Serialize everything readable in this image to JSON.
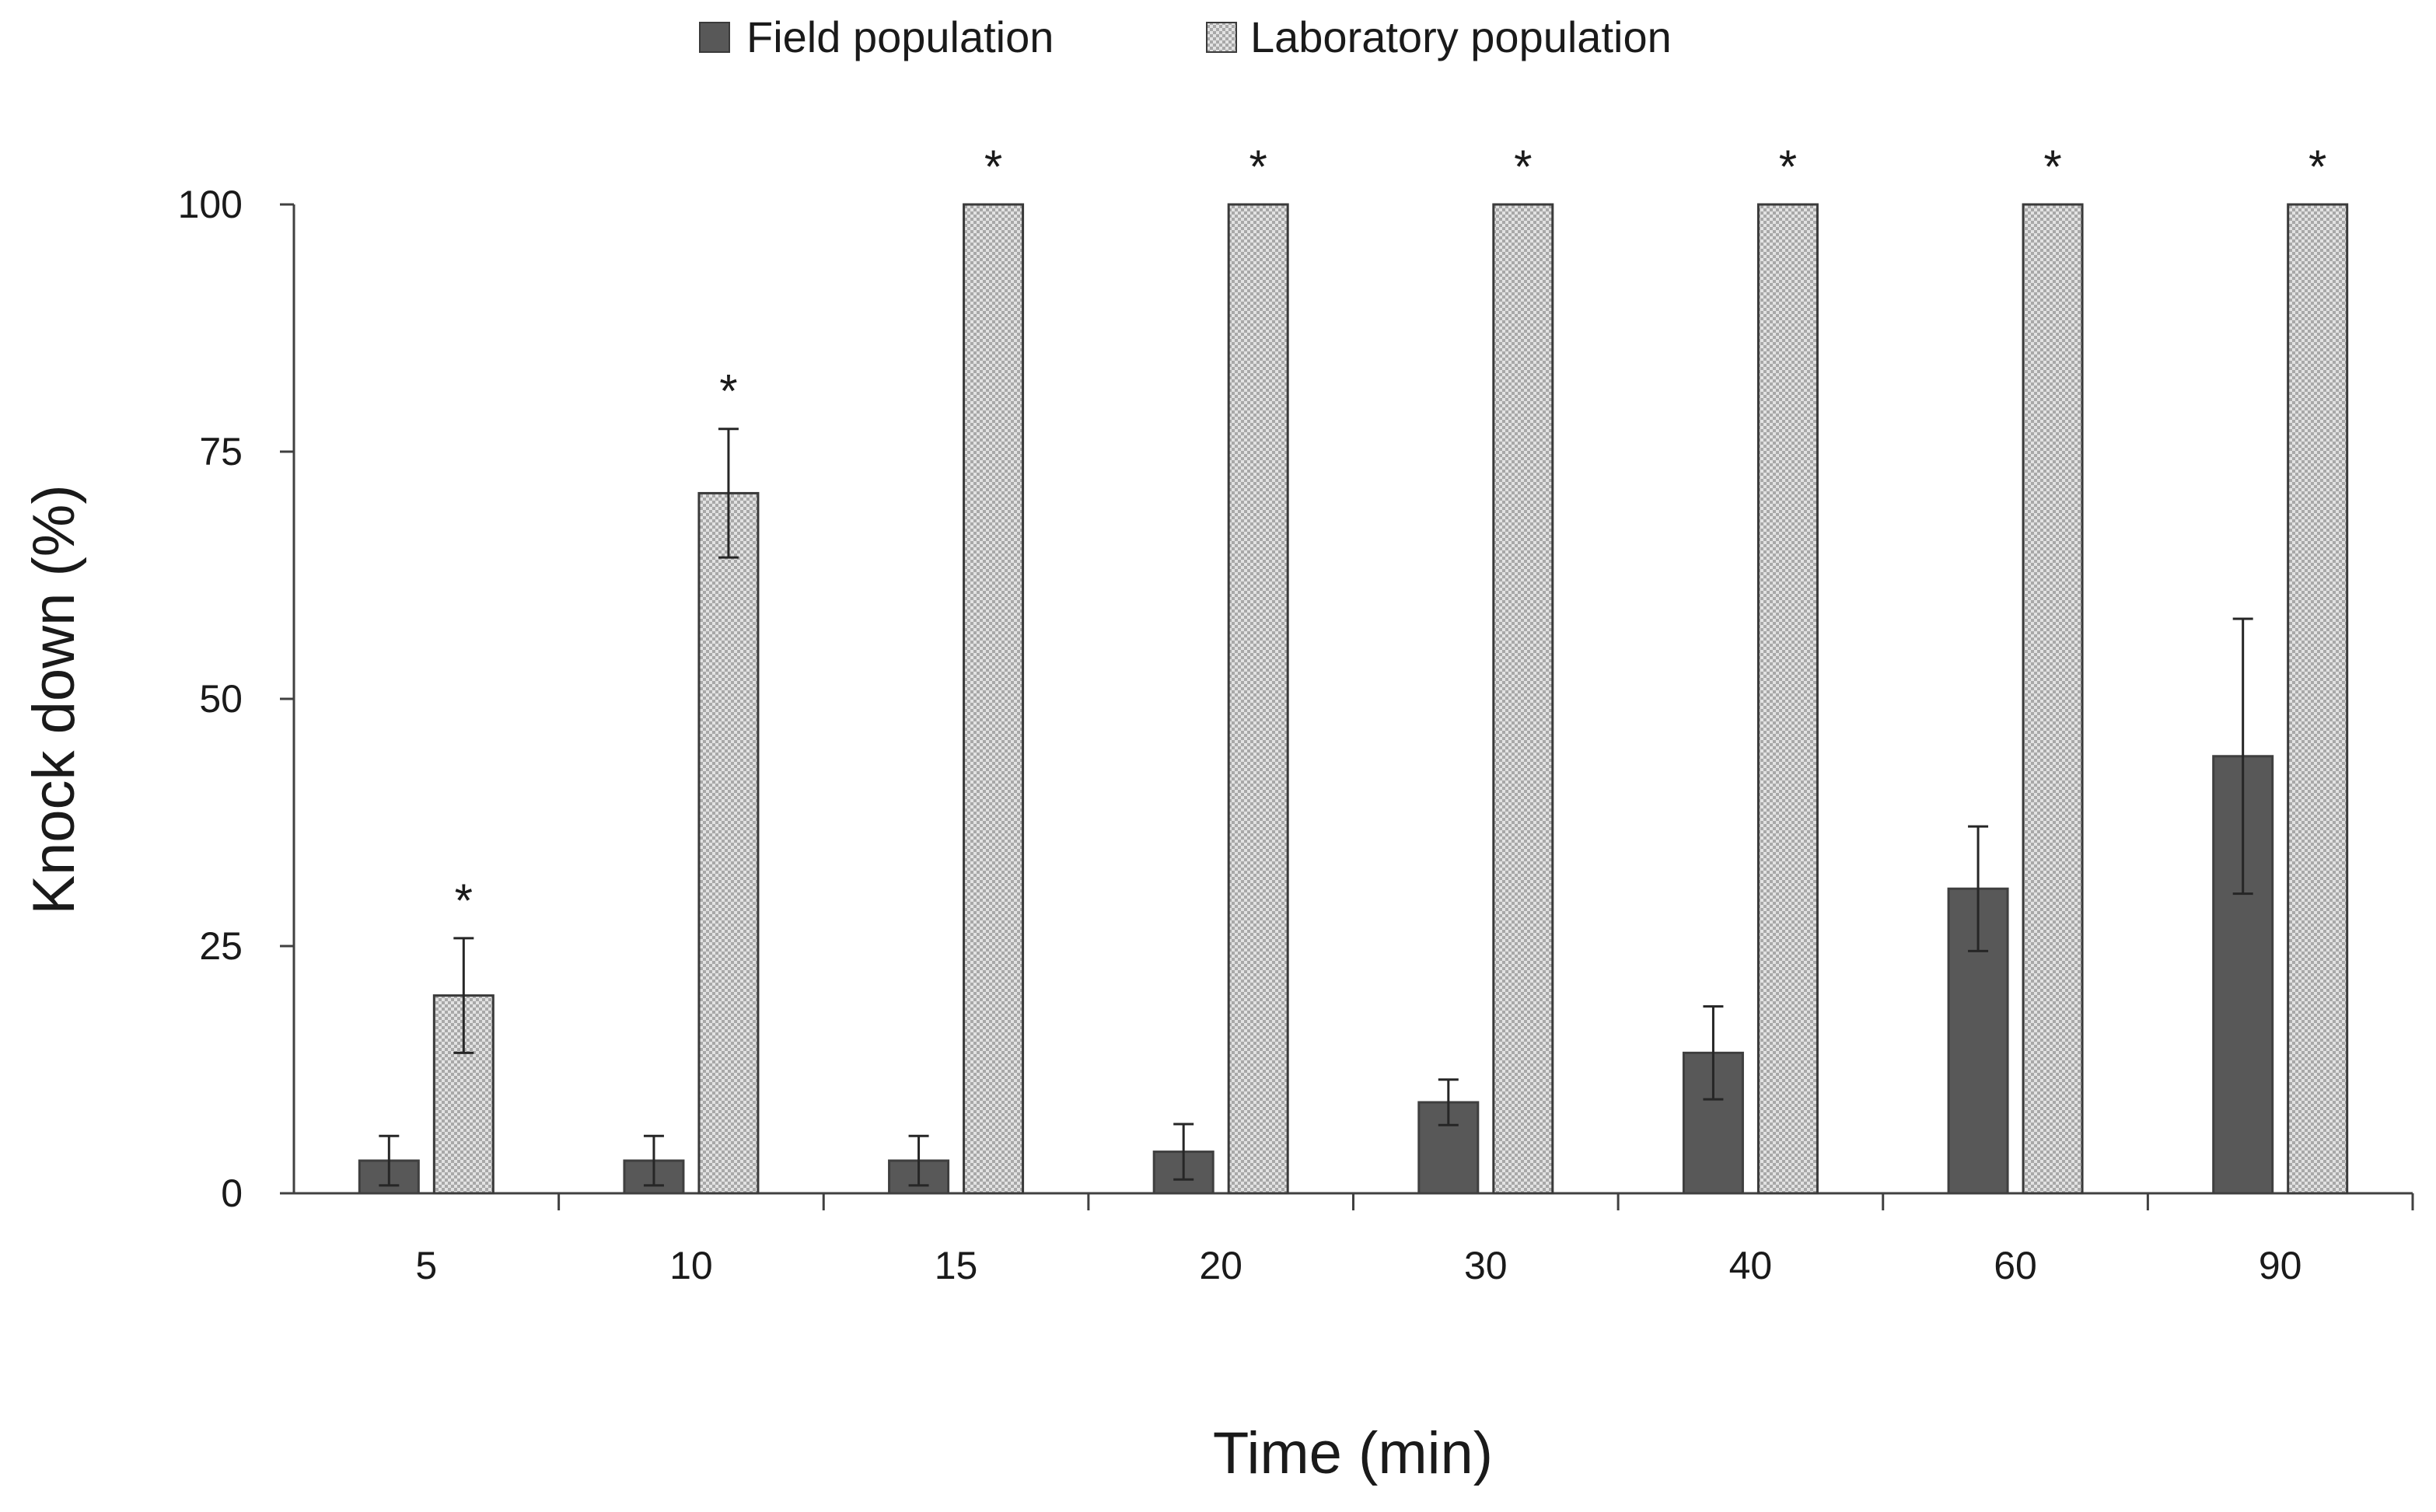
{
  "chart_data": {
    "type": "bar",
    "title": "",
    "xlabel": "Time (min)",
    "ylabel": "Knock down (%)",
    "ylim": [
      0,
      100
    ],
    "yticks": [
      0,
      25,
      50,
      75,
      100
    ],
    "legend_position": "top-center",
    "categories": [
      "5",
      "10",
      "15",
      "20",
      "30",
      "40",
      "60",
      "90"
    ],
    "series": [
      {
        "name": "Field population",
        "color": "#585858",
        "pattern": "solid",
        "values": [
          3.3,
          3.3,
          3.3,
          4.2,
          9.2,
          14.2,
          30.8,
          44.2
        ],
        "errors": [
          2.5,
          2.5,
          2.5,
          2.8,
          2.3,
          4.7,
          6.3,
          13.9
        ]
      },
      {
        "name": "Laboratory population",
        "color": "#c8c8c8",
        "pattern": "checkered",
        "values": [
          20.0,
          70.8,
          100,
          100,
          100,
          100,
          100,
          100
        ],
        "errors": [
          5.8,
          6.5,
          0,
          0,
          0,
          0,
          0,
          0
        ]
      }
    ],
    "significance": [
      "*",
      "*",
      "*",
      "*",
      "*",
      "*",
      "*",
      "*"
    ]
  }
}
